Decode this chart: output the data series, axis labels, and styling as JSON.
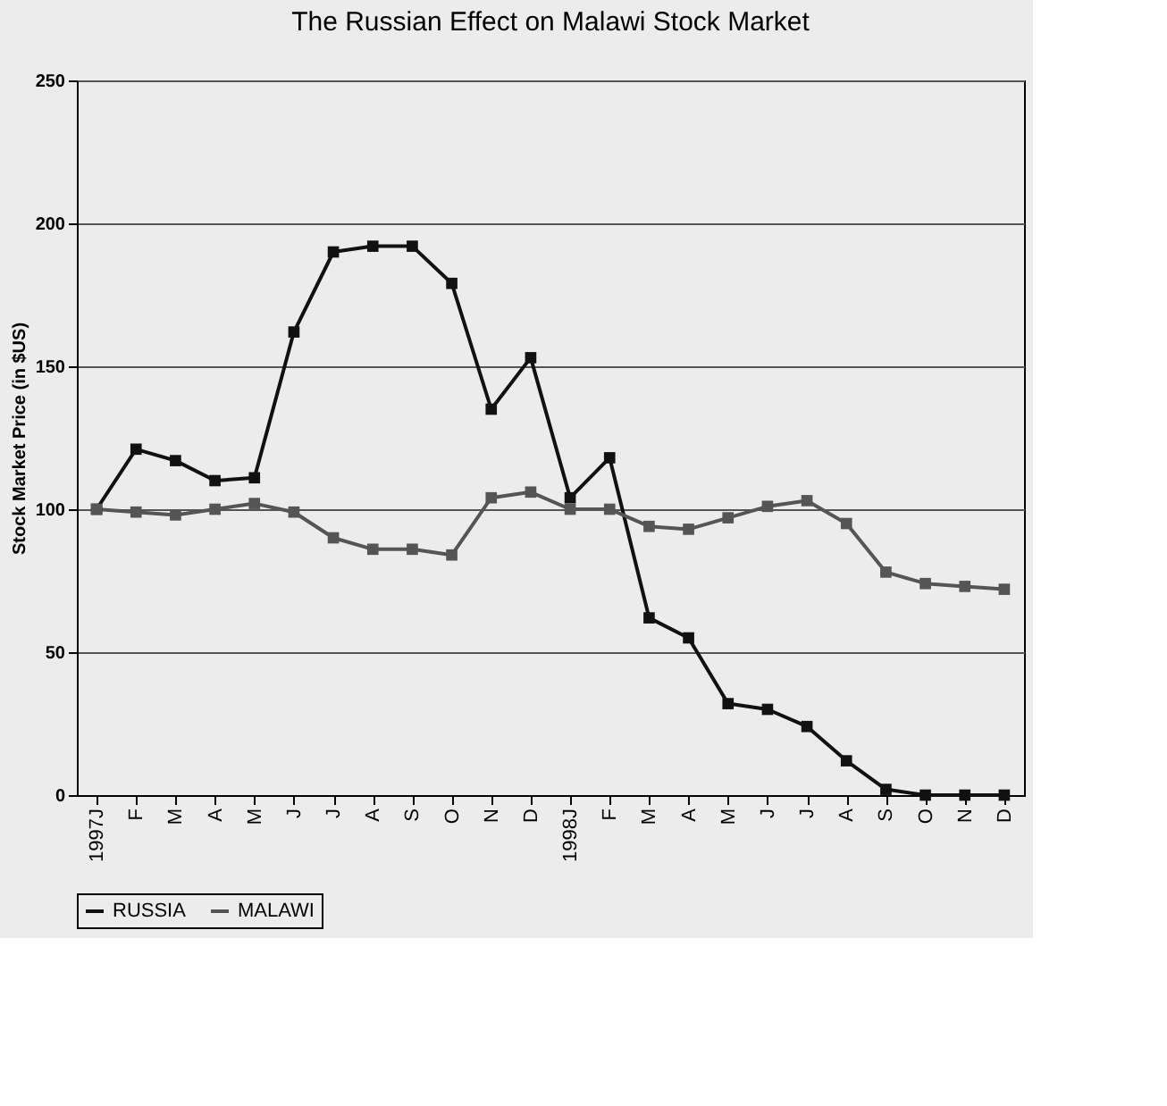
{
  "chart_data": {
    "type": "line",
    "title": "The Russian Effect on Malawi Stock Market",
    "ylabel": "Stock Market Price (in $US)",
    "categories": [
      "1997J",
      "F",
      "M",
      "A",
      "M",
      "J",
      "J",
      "A",
      "S",
      "O",
      "N",
      "D",
      "1998J",
      "F",
      "M",
      "A",
      "M",
      "J",
      "J",
      "A",
      "S",
      "O",
      "N",
      "D"
    ],
    "series": [
      {
        "name": "RUSSIA",
        "color": "#111111",
        "values": [
          100,
          121,
          117,
          110,
          111,
          162,
          190,
          192,
          192,
          179,
          135,
          153,
          104,
          118,
          62,
          55,
          32,
          30,
          24,
          12,
          2,
          0,
          0,
          0
        ]
      },
      {
        "name": "MALAWI",
        "color": "#555555",
        "values": [
          100,
          99,
          98,
          100,
          102,
          99,
          90,
          86,
          86,
          84,
          104,
          106,
          100,
          100,
          94,
          93,
          97,
          101,
          103,
          95,
          78,
          74,
          73,
          72
        ]
      }
    ],
    "ylim": [
      0,
      250
    ],
    "yticks": [
      0,
      50,
      100,
      150,
      200,
      250
    ],
    "grid": "y",
    "legend": "bottom",
    "marker": "square",
    "line_style": "solid"
  }
}
